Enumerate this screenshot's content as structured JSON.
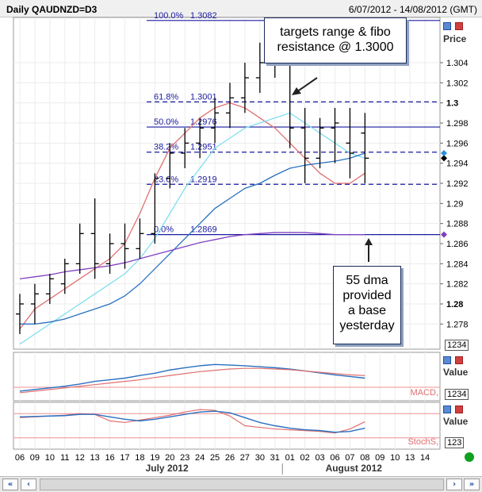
{
  "header": {
    "title": "Daily QAUDNZD=D3",
    "date_range": "6/07/2012 - 14/08/2012 (GMT)"
  },
  "price_axis": {
    "title": "Price",
    "ticks": [
      "1.304",
      "1.302",
      "1.3",
      "1.298",
      "1.296",
      "1.294",
      "1.292",
      "1.29",
      "1.288",
      "1.286",
      "1.284",
      "1.282",
      "1.28",
      "1.278"
    ],
    "ylim": [
      1.2755,
      1.3085
    ],
    "zoom_box": "1234"
  },
  "macd_panel": {
    "axis_title": "Value",
    "label": "MACD,",
    "box": "1234"
  },
  "stoch_panel": {
    "axis_title": "Value",
    "label": "StochS,",
    "box": "123"
  },
  "x_axis": {
    "day_labels": [
      "06",
      "09",
      "10",
      "11",
      "12",
      "13",
      "16",
      "17",
      "18",
      "19",
      "20",
      "23",
      "24",
      "25",
      "26",
      "27",
      "30",
      "31",
      "01",
      "02",
      "03",
      "06",
      "07",
      "08",
      "09",
      "10",
      "13",
      "14"
    ],
    "months": [
      "July 2012",
      "August 2012"
    ]
  },
  "annotations": {
    "targets": "targets range & fibo resistance @ 1.3000",
    "targets_lines": [
      "targets range & fibo",
      "resistance @ 1.3000"
    ],
    "dma": [
      "55 dma",
      "provided",
      "a base",
      "yesterday"
    ]
  },
  "fib_levels": [
    {
      "pct": "100.0%",
      "value": "1.3082",
      "price": 1.3082
    },
    {
      "pct": "61.8%",
      "value": "1.3001",
      "price": 1.3001
    },
    {
      "pct": "50.0%",
      "value": "1.2976",
      "price": 1.2976
    },
    {
      "pct": "38.2%",
      "value": "1.2951",
      "price": 1.2951
    },
    {
      "pct": "23.6%",
      "value": "1.2919",
      "price": 1.2919
    },
    {
      "pct": "0.0%",
      "value": "1.2869",
      "price": 1.2869
    }
  ],
  "colors": {
    "fib": "#1a1aa0",
    "ma_fast": "#e07070",
    "ma_mid": "#80dff0",
    "ma_slow": "#2a70c0",
    "ma_55": "#8040c0",
    "price_bars": "#000000",
    "marker_black": "#000000",
    "marker_blue": "#2a90e0",
    "marker_purple": "#8040c0",
    "status_green": "#10a020"
  },
  "chart_data": {
    "type": "ohlc",
    "x": [
      "06",
      "09",
      "10",
      "11",
      "12",
      "13",
      "16",
      "17",
      "18",
      "19",
      "20",
      "23",
      "24",
      "25",
      "26",
      "27",
      "30",
      "31",
      "01",
      "02",
      "03",
      "06",
      "07",
      "08"
    ],
    "series": [
      {
        "name": "Price",
        "ohlc": [
          [
            1.279,
            1.281,
            1.277,
            1.28
          ],
          [
            1.28,
            1.282,
            1.278,
            1.281
          ],
          [
            1.281,
            1.283,
            1.28,
            1.2825
          ],
          [
            1.282,
            1.2845,
            1.281,
            1.284
          ],
          [
            1.284,
            1.288,
            1.283,
            1.287
          ],
          [
            1.287,
            1.2905,
            1.2825,
            1.284
          ],
          [
            1.284,
            1.287,
            1.283,
            1.286
          ],
          [
            1.286,
            1.288,
            1.2835,
            1.2855
          ],
          [
            1.2855,
            1.2885,
            1.2845,
            1.287
          ],
          [
            1.287,
            1.293,
            1.286,
            1.2925
          ],
          [
            1.2925,
            1.296,
            1.2915,
            1.295
          ],
          [
            1.295,
            1.2975,
            1.2935,
            1.296
          ],
          [
            1.296,
            1.2985,
            1.2945,
            1.2975
          ],
          [
            1.2975,
            1.3005,
            1.296,
            1.299
          ],
          [
            1.299,
            1.302,
            1.2975,
            1.3005
          ],
          [
            1.3005,
            1.304,
            1.299,
            1.3025
          ],
          [
            1.3025,
            1.306,
            1.301,
            1.304
          ],
          [
            1.304,
            1.3085,
            1.3025,
            1.3065
          ],
          [
            1.305,
            1.3055,
            1.2955,
            1.2975
          ],
          [
            1.2975,
            1.2995,
            1.292,
            1.2945
          ],
          [
            1.2945,
            1.2985,
            1.2935,
            1.2975
          ],
          [
            1.2975,
            1.2995,
            1.294,
            1.298
          ],
          [
            1.296,
            1.2995,
            1.2925,
            1.295
          ],
          [
            1.297,
            1.299,
            1.292,
            1.2945
          ]
        ]
      },
      {
        "name": "",
        "values": [
          1.2775,
          1.2795,
          1.2805,
          1.2815,
          1.2825,
          1.2835,
          1.2845,
          1.286,
          1.289,
          1.2925,
          1.2955,
          1.297,
          1.2985,
          1.2995,
          1.3,
          1.2995,
          1.2985,
          1.2975,
          1.296,
          1.2945,
          1.293,
          1.292,
          1.292,
          1.293
        ]
      },
      {
        "name": "",
        "values": [
          1.276,
          1.277,
          1.278,
          1.279,
          1.28,
          1.281,
          1.282,
          1.283,
          1.2845,
          1.2865,
          1.289,
          1.2915,
          1.2935,
          1.2955,
          1.2965,
          1.2975,
          1.298,
          1.2985,
          1.299,
          1.298,
          1.297,
          1.296,
          1.295,
          1.2945
        ]
      },
      {
        "name": "",
        "values": [
          1.278,
          1.278,
          1.2782,
          1.2785,
          1.279,
          1.2795,
          1.28,
          1.2808,
          1.282,
          1.2835,
          1.285,
          1.2865,
          1.288,
          1.2895,
          1.2905,
          1.2915,
          1.292,
          1.2928,
          1.2935,
          1.2938,
          1.294,
          1.2942,
          1.2945,
          1.295
        ]
      },
      {
        "name": "",
        "values": [
          1.2825,
          1.2827,
          1.2829,
          1.2832,
          1.2834,
          1.2836,
          1.2838,
          1.2841,
          1.2845,
          1.2849,
          1.2853,
          1.2857,
          1.2861,
          1.2864,
          1.2867,
          1.2869,
          1.287,
          1.2871,
          1.2871,
          1.2871,
          1.287,
          1.2869,
          1.2869,
          1.2869
        ]
      }
    ],
    "macd": {
      "macd": [
        0.1,
        0.15,
        0.2,
        0.25,
        0.32,
        0.4,
        0.45,
        0.5,
        0.58,
        0.65,
        0.75,
        0.82,
        0.88,
        0.92,
        0.9,
        0.88,
        0.85,
        0.82,
        0.78,
        0.72,
        0.66,
        0.6,
        0.55,
        0.5
      ],
      "signal": [
        0.05,
        0.1,
        0.15,
        0.2,
        0.25,
        0.3,
        0.35,
        0.4,
        0.45,
        0.52,
        0.58,
        0.64,
        0.7,
        0.74,
        0.78,
        0.8,
        0.8,
        0.78,
        0.76,
        0.72,
        0.68,
        0.64,
        0.6,
        0.58
      ]
    },
    "stoch": {
      "k": [
        70,
        72,
        74,
        76,
        80,
        78,
        62,
        58,
        64,
        70,
        76,
        84,
        90,
        88,
        74,
        50,
        46,
        42,
        40,
        38,
        36,
        32,
        42,
        60
      ],
      "d": [
        72,
        73,
        74,
        75,
        78,
        78,
        72,
        66,
        62,
        66,
        72,
        78,
        84,
        86,
        82,
        70,
        58,
        50,
        44,
        40,
        38,
        34,
        36,
        44
      ]
    }
  }
}
